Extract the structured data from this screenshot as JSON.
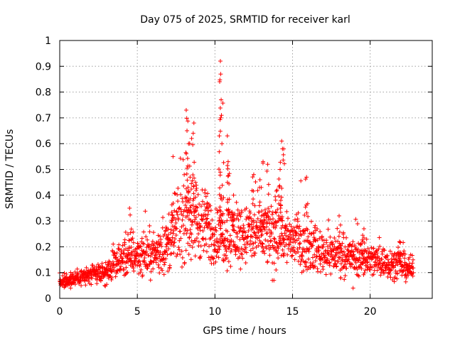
{
  "chart_data": {
    "type": "scatter",
    "title": "Day 075 of 2025, SRMTID for receiver karl",
    "xlabel": "GPS time / hours",
    "ylabel": "SRMTID / TECUs",
    "xlim": [
      0,
      24
    ],
    "ylim": [
      0,
      1
    ],
    "xticks": [
      0,
      5,
      10,
      15,
      20
    ],
    "yticks": [
      0,
      0.1,
      0.2,
      0.3,
      0.4,
      0.5,
      0.6,
      0.7,
      0.8,
      0.9,
      1
    ],
    "xtick_labels": [
      "0",
      "5",
      "10",
      "15",
      "20"
    ],
    "ytick_labels": [
      "0",
      "0.1",
      "0.2",
      "0.3",
      "0.4",
      "0.5",
      "0.6",
      "0.7",
      "0.8",
      "0.9",
      "1"
    ],
    "grid": true,
    "marker": "+",
    "color": "#ff0000",
    "series": [
      {
        "name": "SRMTID",
        "profile": [
          [
            0.0,
            0.06
          ],
          [
            1.0,
            0.08
          ],
          [
            2.0,
            0.09
          ],
          [
            3.0,
            0.1
          ],
          [
            4.0,
            0.15
          ],
          [
            5.0,
            0.17
          ],
          [
            6.0,
            0.17
          ],
          [
            7.0,
            0.2
          ],
          [
            7.5,
            0.27
          ],
          [
            8.0,
            0.3
          ],
          [
            8.5,
            0.32
          ],
          [
            9.0,
            0.3
          ],
          [
            9.5,
            0.27
          ],
          [
            10.0,
            0.24
          ],
          [
            11.0,
            0.25
          ],
          [
            12.0,
            0.25
          ],
          [
            13.0,
            0.25
          ],
          [
            14.0,
            0.25
          ],
          [
            15.0,
            0.23
          ],
          [
            16.0,
            0.2
          ],
          [
            17.0,
            0.18
          ],
          [
            18.0,
            0.17
          ],
          [
            19.0,
            0.16
          ],
          [
            20.0,
            0.15
          ],
          [
            21.0,
            0.14
          ],
          [
            22.0,
            0.13
          ],
          [
            22.8,
            0.11
          ]
        ],
        "peaks": [
          [
            8.15,
            0.73
          ],
          [
            8.2,
            0.65
          ],
          [
            8.6,
            0.64
          ],
          [
            8.3,
            0.6
          ],
          [
            7.3,
            0.55
          ],
          [
            8.75,
            0.45
          ],
          [
            8.4,
            0.47
          ],
          [
            10.35,
            0.92
          ],
          [
            10.37,
            0.87
          ],
          [
            10.4,
            0.77
          ],
          [
            10.42,
            0.71
          ],
          [
            10.8,
            0.63
          ],
          [
            10.85,
            0.53
          ],
          [
            10.45,
            0.6
          ],
          [
            13.1,
            0.53
          ],
          [
            13.4,
            0.52
          ],
          [
            12.5,
            0.48
          ],
          [
            14.3,
            0.61
          ],
          [
            14.35,
            0.58
          ],
          [
            14.2,
            0.5
          ],
          [
            15.9,
            0.47
          ],
          [
            4.5,
            0.35
          ],
          [
            18.0,
            0.32
          ],
          [
            9.5,
            0.37
          ],
          [
            11.2,
            0.4
          ],
          [
            12.9,
            0.46
          ],
          [
            14.0,
            0.42
          ],
          [
            6.9,
            0.27
          ],
          [
            19.6,
            0.27
          ],
          [
            21.9,
            0.22
          ]
        ],
        "troughs": [
          [
            13.7,
            0.07
          ],
          [
            13.8,
            0.07
          ],
          [
            18.9,
            0.04
          ],
          [
            0.7,
            0.04
          ],
          [
            2.9,
            0.05
          ]
        ]
      }
    ]
  }
}
